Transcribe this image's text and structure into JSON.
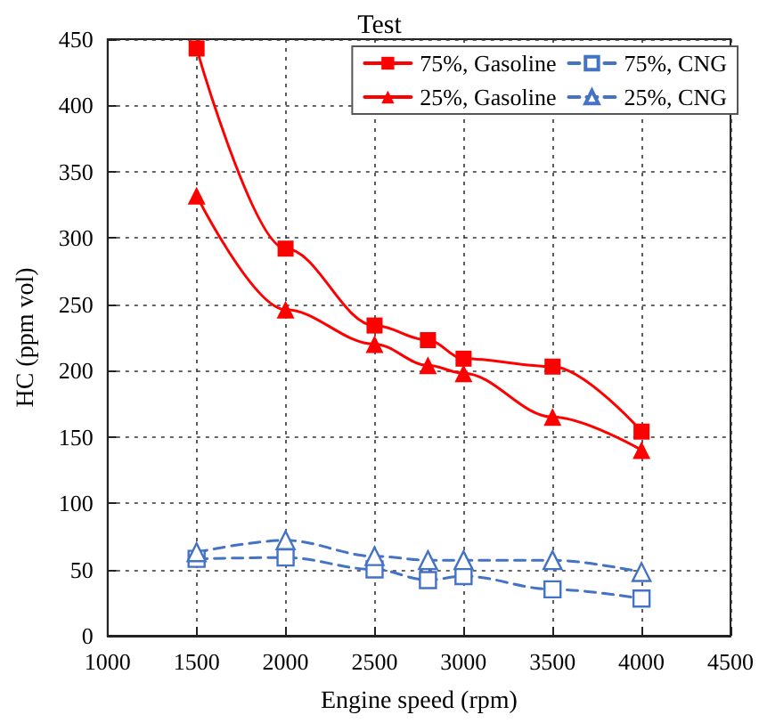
{
  "chart_data": {
    "type": "line",
    "title": "Test",
    "xlabel": "Engine speed (rpm)",
    "ylabel": "HC (ppm vol)",
    "x": [
      1500,
      2000,
      2500,
      2800,
      3000,
      3500,
      4000
    ],
    "series": [
      {
        "name": "75%, Gasoline",
        "color": "#ff0000",
        "marker": "square",
        "line_style": "solid",
        "values": [
          443,
          292,
          234,
          223,
          209,
          203,
          154
        ]
      },
      {
        "name": "75%, CNG",
        "color": "#4472c4",
        "marker": "square",
        "line_style": "dashed",
        "values": [
          58,
          59,
          50,
          42,
          45,
          35,
          28
        ]
      },
      {
        "name": "25%, Gasoline",
        "color": "#ff0000",
        "marker": "triangle",
        "line_style": "solid",
        "values": [
          332,
          246,
          220,
          204,
          198,
          165,
          140
        ]
      },
      {
        "name": "25%, CNG",
        "color": "#4472c4",
        "marker": "triangle",
        "line_style": "dashed",
        "values": [
          63,
          72,
          60,
          57,
          57,
          57,
          48
        ]
      }
    ],
    "xlim": [
      1000,
      4500
    ],
    "xticks": [
      1000,
      1500,
      2000,
      2500,
      3000,
      3500,
      4000,
      4500
    ],
    "ylim": [
      0,
      450
    ],
    "yticks": [
      0,
      50,
      100,
      150,
      200,
      250,
      300,
      350,
      400,
      450
    ],
    "grid": true,
    "legend": "top right"
  }
}
